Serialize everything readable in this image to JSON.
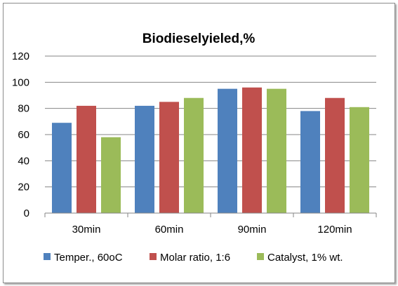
{
  "chart_data": {
    "type": "bar",
    "title": "Biodieselyieled,%",
    "xlabel": "",
    "ylabel": "",
    "categories": [
      "30min",
      "60min",
      "90min",
      "120min"
    ],
    "ylim": [
      0,
      120
    ],
    "yticks": [
      0,
      20,
      40,
      60,
      80,
      100,
      120
    ],
    "grid": true,
    "legend_position": "bottom",
    "series": [
      {
        "name": "Temper., 60oC",
        "color": "#4f81bd",
        "values": [
          69,
          82,
          95,
          78
        ]
      },
      {
        "name": "Molar ratio, 1:6",
        "color": "#c0504d",
        "values": [
          82,
          85,
          96,
          88
        ]
      },
      {
        "name": "Catalyst, 1% wt.",
        "color": "#9bbb59",
        "values": [
          58,
          88,
          95,
          81
        ]
      }
    ]
  }
}
